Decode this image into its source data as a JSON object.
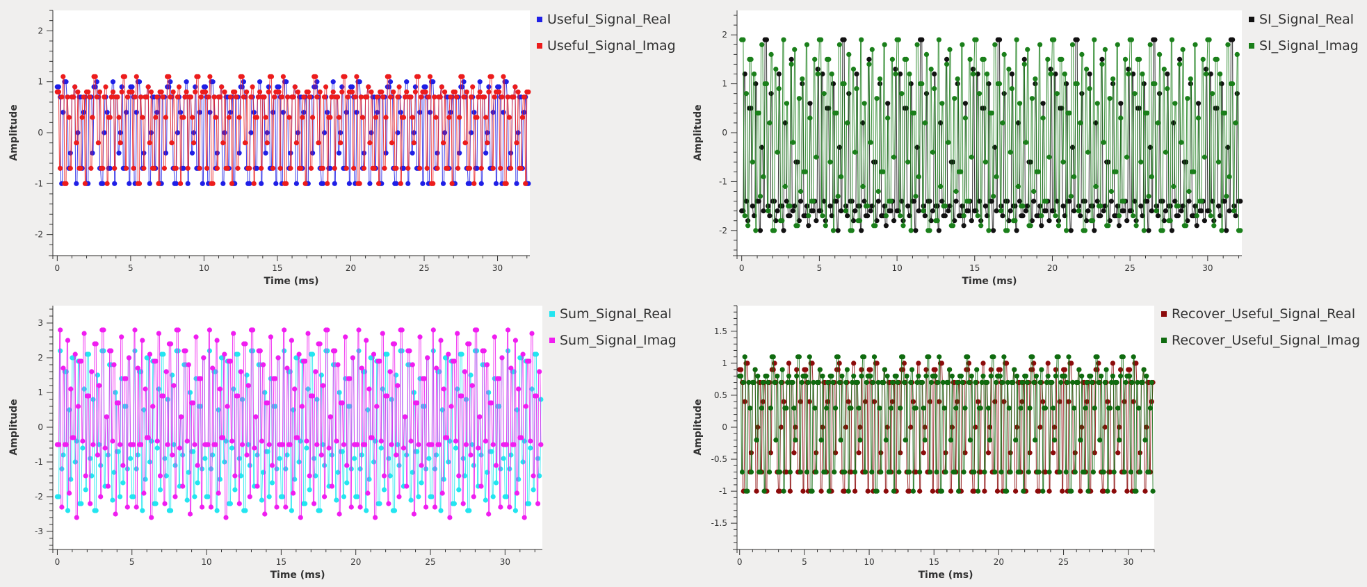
{
  "chart_data": [
    {
      "type": "line",
      "title": "",
      "xlabel": "Time (ms)",
      "ylabel": "Amplitude",
      "xlim": [
        -0.3,
        32.2
      ],
      "ylim": [
        -2.4,
        2.4
      ],
      "xticks": [
        0,
        5,
        10,
        15,
        20,
        25,
        30
      ],
      "yticks": [
        -2,
        -1,
        0,
        1,
        2
      ],
      "grid": false,
      "legend": "outside-right-top",
      "period": 5,
      "samples_per_ms": 20,
      "series": [
        {
          "name": "Useful_Signal_Real",
          "color": "#1f1fe6",
          "pattern": [
            0.9,
            0.7,
            -1.0,
            0.4,
            1.0,
            0.7,
            -0.7,
            -0.4,
            0.7,
            0.9,
            -1.0,
            0.0,
            0.7,
            -0.7,
            0.4,
            0.7,
            -1.0,
            0.7,
            0.7,
            -0.4,
            0.9,
            1.0,
            0.7,
            -0.7,
            -1.0,
            0.0,
            0.7,
            0.4,
            -0.7,
            0.7,
            1.0,
            -1.0,
            0.7,
            -0.4,
            0.0,
            0.9,
            -0.7,
            0.4,
            0.7,
            -1.0
          ]
        },
        {
          "name": "Useful_Signal_Imag",
          "color": "#ec1c1c",
          "pattern": [
            0.8,
            -0.7,
            0.7,
            1.1,
            -1.0,
            0.7,
            0.3,
            -0.7,
            0.7,
            0.9,
            -0.2,
            0.8,
            -0.7,
            0.3,
            0.7,
            -1.0,
            0.8,
            0.7,
            -0.7,
            0.3,
            1.1,
            0.7,
            -0.2,
            0.8,
            -0.7,
            0.7,
            0.9,
            -1.0,
            0.3,
            0.7,
            0.8,
            -0.7,
            0.7,
            0.3,
            -0.2,
            0.8,
            1.1,
            -0.7,
            0.7,
            0.8
          ]
        }
      ]
    },
    {
      "type": "line",
      "title": "",
      "xlabel": "Time (ms)",
      "ylabel": "Amplitude",
      "xlim": [
        -0.3,
        32.2
      ],
      "ylim": [
        -2.5,
        2.5
      ],
      "xticks": [
        0,
        5,
        10,
        15,
        20,
        25,
        30
      ],
      "yticks": [
        -2,
        -1,
        0,
        1,
        2
      ],
      "grid": false,
      "legend": "outside-right-top",
      "period": 5,
      "samples_per_ms": 20,
      "series": [
        {
          "name": "SI_Signal_Real",
          "color": "#111111",
          "pattern": [
            -1.6,
            1.2,
            -1.4,
            -1.8,
            0.5,
            -1.5,
            -1.7,
            1.0,
            -1.4,
            -2.0,
            -0.3,
            -1.6,
            1.9,
            -1.5,
            -1.7,
            0.8,
            -1.4,
            -1.8,
            -1.6,
            1.2,
            -1.5,
            -2.0,
            0.2,
            -1.4,
            -1.7,
            1.5,
            -1.6,
            -1.5,
            -0.6,
            -1.8,
            -1.4,
            1.0,
            -1.7,
            -1.5,
            -1.9,
            0.6,
            -1.6,
            -1.4,
            -1.8,
            1.3
          ]
        },
        {
          "name": "SI_Signal_Imag",
          "color": "#1a7f1a",
          "pattern": [
            1.9,
            -1.7,
            0.8,
            -1.9,
            1.5,
            -0.6,
            1.2,
            -2.0,
            0.4,
            -1.3,
            1.8,
            -0.9,
            1.0,
            -1.6,
            0.2,
            1.6,
            -2.0,
            1.3,
            -0.4,
            0.9,
            -1.8,
            1.9,
            -1.1,
            0.6,
            -1.5,
            1.4,
            -0.2,
            1.7,
            -1.9,
            0.7,
            -1.2,
            1.1,
            -0.8,
            1.8,
            -1.7,
            0.3,
            -1.4,
            1.5,
            -0.5,
            1.2
          ]
        }
      ]
    },
    {
      "type": "line",
      "title": "",
      "xlabel": "Time (ms)",
      "ylabel": "Amplitude",
      "xlim": [
        -0.3,
        32.5
      ],
      "ylim": [
        -3.5,
        3.5
      ],
      "xticks": [
        0,
        5,
        10,
        15,
        20,
        25,
        30
      ],
      "yticks": [
        -3,
        -2,
        -1,
        0,
        1,
        2,
        3
      ],
      "grid": false,
      "legend": "outside-right-top",
      "period": 5,
      "samples_per_ms": 20,
      "series": [
        {
          "name": "Sum_Signal_Real",
          "color": "#22e5f0",
          "pattern": [
            -2.0,
            2.2,
            -1.2,
            -0.8,
            1.6,
            -2.4,
            0.5,
            -1.5,
            2.0,
            -1.0,
            -0.4,
            1.9,
            -2.2,
            -0.6,
            1.1,
            -1.8,
            2.1,
            -0.9,
            -1.4,
            0.8,
            -2.4,
            1.5,
            -0.5,
            -1.1,
            2.2,
            -1.7,
            0.3,
            -0.8,
            1.8,
            -2.1,
            -1.3,
            1.0,
            -0.7,
            -2.0,
            1.4,
            -1.6,
            0.6,
            -1.2,
            2.0,
            -0.9
          ]
        },
        {
          "name": "Sum_Signal_Imag",
          "color": "#f01df0",
          "pattern": [
            -0.5,
            2.8,
            -2.3,
            1.7,
            -0.5,
            2.5,
            -1.9,
            1.1,
            -0.3,
            2.1,
            -2.6,
            0.6,
            1.9,
            -0.4,
            2.7,
            -1.4,
            0.9,
            -2.2,
            1.6,
            -0.5,
            2.4,
            -0.8,
            1.2,
            -2.0,
            2.8,
            -0.6,
            0.3,
            -1.7,
            2.2,
            -0.4,
            1.8,
            -2.5,
            0.7,
            -0.5,
            2.6,
            -1.1,
            1.4,
            -2.3,
            2.0,
            -0.5
          ]
        }
      ]
    },
    {
      "type": "line",
      "title": "",
      "xlabel": "Time (ms)",
      "ylabel": "Amplitude",
      "xlim": [
        -0.2,
        32.0
      ],
      "ylim": [
        -1.9,
        1.9
      ],
      "xticks": [
        0,
        5,
        10,
        15,
        20,
        25,
        30
      ],
      "yticks": [
        -1.5,
        -1,
        -0.5,
        0,
        0.5,
        1,
        1.5
      ],
      "grid": false,
      "legend": "outside-right-top",
      "period": 5,
      "samples_per_ms": 20,
      "series": [
        {
          "name": "Recover_Useful_Signal_Real",
          "color": "#8b0a0a",
          "pattern": [
            0.9,
            0.7,
            -1.0,
            0.4,
            1.0,
            0.7,
            -0.7,
            -0.4,
            0.7,
            0.9,
            -1.0,
            0.0,
            0.7,
            -0.7,
            0.4,
            0.7,
            -1.0,
            0.7,
            0.7,
            -0.4,
            0.9,
            1.0,
            0.7,
            -0.7,
            -1.0,
            0.0,
            0.7,
            0.4,
            -0.7,
            0.7,
            1.0,
            -1.0,
            0.7,
            -0.4,
            0.0,
            0.9,
            -0.7,
            0.4,
            0.7,
            -1.0
          ]
        },
        {
          "name": "Recover_Useful_Signal_Imag",
          "color": "#0f6b0f",
          "pattern": [
            0.8,
            -0.7,
            0.7,
            1.1,
            -1.0,
            0.7,
            0.3,
            -0.7,
            0.7,
            0.9,
            -0.2,
            0.8,
            -0.7,
            0.3,
            0.7,
            -1.0,
            0.8,
            0.7,
            -0.7,
            0.3,
            1.1,
            0.7,
            -0.2,
            0.8,
            -0.7,
            0.7,
            0.9,
            -1.0,
            0.3,
            0.7,
            0.8,
            -0.7,
            0.7,
            0.3,
            -0.2,
            0.8,
            1.1,
            -0.7,
            0.7,
            0.8
          ]
        }
      ]
    }
  ]
}
